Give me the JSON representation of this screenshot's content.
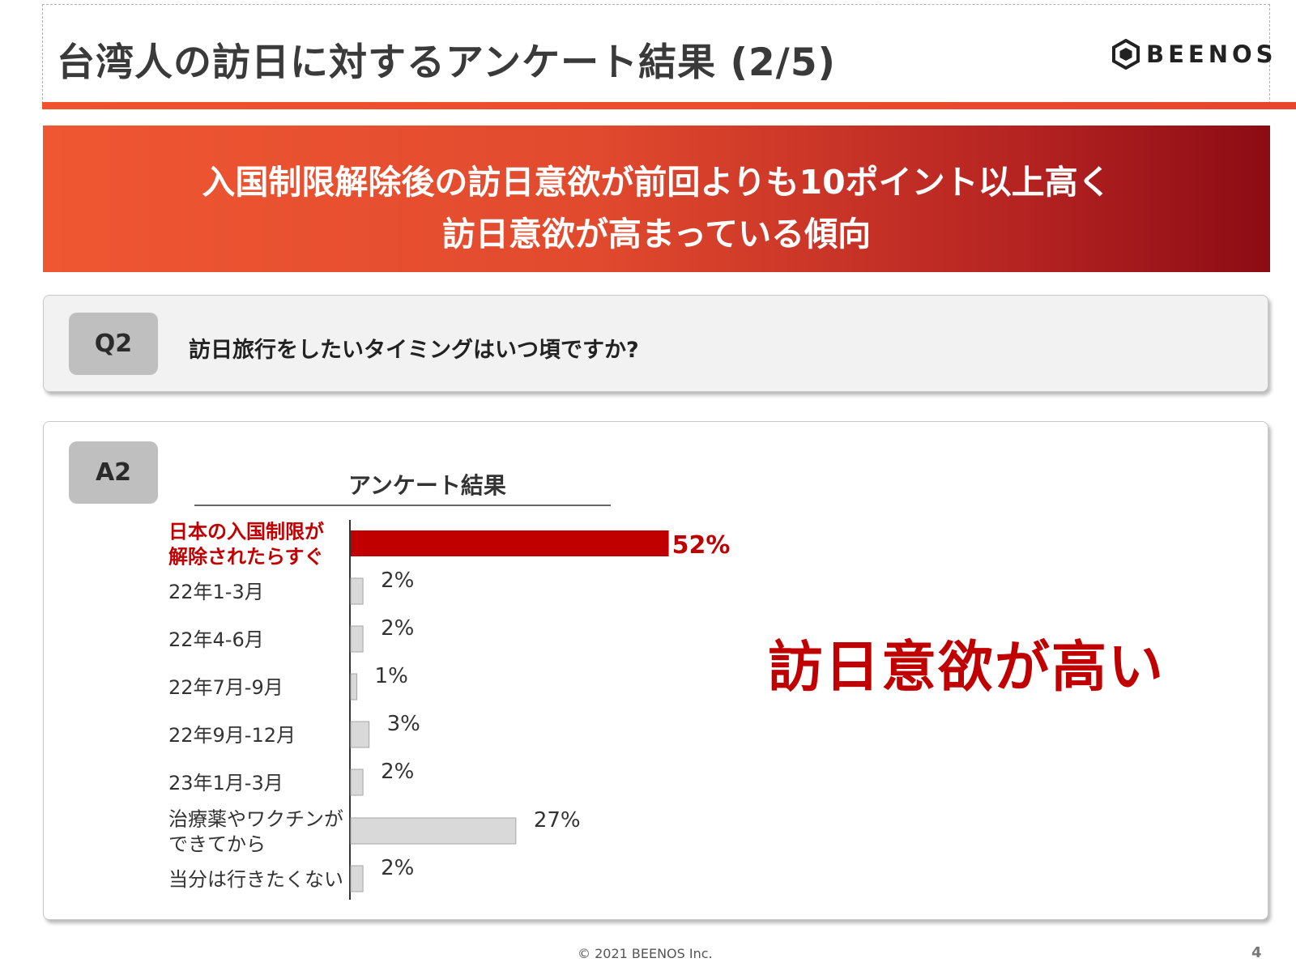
{
  "header": {
    "title": "台湾人の訪日に対するアンケート結果 (2/5)",
    "logo_text": "BEENOS",
    "logo_icon": "hexagon-logo-icon"
  },
  "banner": {
    "line1": "入国制限解除後の訪日意欲が前回よりも10ポイント以上高く",
    "line2": "訪日意欲が高まっている傾向"
  },
  "question": {
    "tag": "Q2",
    "text": "訪日旅行をしたいタイミングはいつ頃ですか?"
  },
  "answer": {
    "tag": "A2",
    "highlight": "訪日意欲が高い"
  },
  "chart_data": {
    "type": "bar",
    "orientation": "horizontal",
    "title": "アンケート結果",
    "categories": [
      [
        "日本の入国制限が",
        "解除されたらすぐ"
      ],
      [
        "22年1-3月"
      ],
      [
        "22年4-6月"
      ],
      [
        "22年7月-9月"
      ],
      [
        "22年9月-12月"
      ],
      [
        "23年1月-3月"
      ],
      [
        "治療薬やワクチンが",
        "できてから"
      ],
      [
        "当分は行きたくない"
      ]
    ],
    "values": [
      52,
      2,
      2,
      1,
      3,
      2,
      27,
      2
    ],
    "value_labels": [
      "52%",
      "2%",
      "2%",
      "1%",
      "3%",
      "2%",
      "27%",
      "2%"
    ],
    "highlight_index": 0,
    "colors": {
      "highlight": "#c00000",
      "default": "#d9d9d9",
      "default_border": "#a6a6a6"
    }
  },
  "footer": {
    "copyright": "© 2021 BEENOS Inc.",
    "page": "4"
  }
}
